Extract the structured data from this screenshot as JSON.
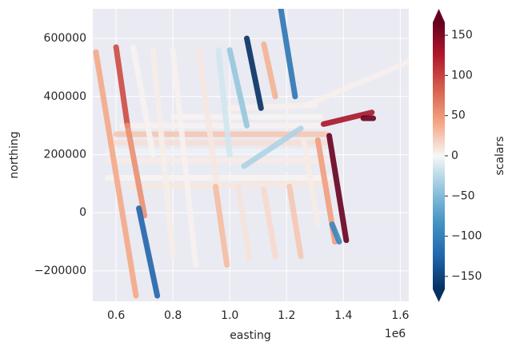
{
  "chart_data": {
    "type": "tracks",
    "xlabel": "easting",
    "ylabel": "northing",
    "x_offset_text": "1e6",
    "xlim": [
      518000,
      1630000
    ],
    "ylim": [
      -305000,
      702000
    ],
    "xticks": [
      {
        "value": 600000,
        "label": "0.6"
      },
      {
        "value": 800000,
        "label": "0.8"
      },
      {
        "value": 1000000,
        "label": "1.0"
      },
      {
        "value": 1200000,
        "label": "1.2"
      },
      {
        "value": 1400000,
        "label": "1.4"
      },
      {
        "value": 1600000,
        "label": "1.6"
      }
    ],
    "yticks": [
      {
        "value": -200000,
        "label": "−200000"
      },
      0,
      200000,
      400000,
      600000
    ],
    "colorbar_label": "scalars",
    "clim": [
      -166,
      166
    ],
    "cticks": [
      {
        "value": -150,
        "label": "−150"
      },
      {
        "value": -100,
        "label": "−100"
      },
      {
        "value": -50,
        "label": "−50"
      },
      0,
      50,
      100,
      150
    ],
    "colormap": "RdBu_r",
    "series": [
      {
        "x": [
          1270000,
          1630000
        ],
        "values": [
          370000,
          520000
        ],
        "scalar": 4
      },
      {
        "x": [
          570000,
          1350000
        ],
        "values": [
          120000,
          120000
        ],
        "scalar": 2
      },
      {
        "x": [
          570000,
          1350000
        ],
        "values": [
          150000,
          150000
        ],
        "scalar": -8
      },
      {
        "x": [
          570000,
          1350000
        ],
        "values": [
          180000,
          180000
        ],
        "scalar": 6
      },
      {
        "x": [
          570000,
          1350000
        ],
        "values": [
          210000,
          210000
        ],
        "scalar": -4
      },
      {
        "x": [
          580000,
          1350000
        ],
        "values": [
          240000,
          240000
        ],
        "scalar": 12
      },
      {
        "x": [
          600000,
          1340000
        ],
        "values": [
          270000,
          270000
        ],
        "scalar": 25
      },
      {
        "x": [
          620000,
          1330000
        ],
        "values": [
          300000,
          300000
        ],
        "scalar": 3
      },
      {
        "x": [
          800000,
          1320000
        ],
        "values": [
          330000,
          330000
        ],
        "scalar": 2
      },
      {
        "x": [
          1000000,
          1300000
        ],
        "values": [
          360000,
          370000
        ],
        "scalar": 4
      },
      {
        "x": [
          1050000,
          1250000
        ],
        "values": [
          160000,
          290000
        ],
        "scalar": -30
      },
      {
        "x": [
          650000,
          1350000
        ],
        "values": [
          90000,
          100000
        ],
        "scalar": 8
      },
      {
        "x": [
          529000,
          670000
        ],
        "values": [
          553000,
          -286000
        ],
        "scalar": 40
      },
      {
        "x": [
          600000,
          640000
        ],
        "values": [
          570000,
          300000
        ],
        "scalar": 95
      },
      {
        "x": [
          640000,
          700000
        ],
        "values": [
          300000,
          -10000
        ],
        "scalar": 55
      },
      {
        "x": [
          680000,
          745000
        ],
        "values": [
          15000,
          -286000
        ],
        "scalar": -125
      },
      {
        "x": [
          660000,
          730000
        ],
        "values": [
          570000,
          200000
        ],
        "scalar": 2
      },
      {
        "x": [
          730000,
          800000
        ],
        "values": [
          560000,
          -150000
        ],
        "scalar": 5
      },
      {
        "x": [
          800000,
          880000
        ],
        "values": [
          560000,
          -180000
        ],
        "scalar": 3
      },
      {
        "x": [
          890000,
          960000
        ],
        "values": [
          560000,
          60000
        ],
        "scalar": 8
      },
      {
        "x": [
          960000,
          1000000
        ],
        "values": [
          560000,
          200000
        ],
        "scalar": -15
      },
      {
        "x": [
          950000,
          990000
        ],
        "values": [
          90000,
          -180000
        ],
        "scalar": 30
      },
      {
        "x": [
          1030000,
          1070000
        ],
        "values": [
          90000,
          -160000
        ],
        "scalar": 10
      },
      {
        "x": [
          1000000,
          1060000
        ],
        "values": [
          560000,
          300000
        ],
        "scalar": -40
      },
      {
        "x": [
          1060000,
          1110000
        ],
        "values": [
          600000,
          360000
        ],
        "scalar": -170
      },
      {
        "x": [
          1120000,
          1160000
        ],
        "values": [
          580000,
          400000
        ],
        "scalar": 35
      },
      {
        "x": [
          1180000,
          1230000
        ],
        "values": [
          700000,
          400000
        ],
        "scalar": -110
      },
      {
        "x": [
          1120000,
          1160000
        ],
        "values": [
          80000,
          -150000
        ],
        "scalar": 15
      },
      {
        "x": [
          1210000,
          1250000
        ],
        "values": [
          90000,
          -150000
        ],
        "scalar": 25
      },
      {
        "x": [
          1260000,
          1310000
        ],
        "values": [
          250000,
          -40000
        ],
        "scalar": 6
      },
      {
        "x": [
          1310000,
          1370000
        ],
        "values": [
          250000,
          -100000
        ],
        "scalar": 45
      },
      {
        "x": [
          1360000,
          1385000
        ],
        "values": [
          -40000,
          -100000
        ],
        "scalar": -95
      },
      {
        "x": [
          1350000,
          1410000
        ],
        "values": [
          265000,
          -95000
        ],
        "scalar": 175
      },
      {
        "x": [
          1330000,
          1500000
        ],
        "values": [
          305000,
          345000
        ],
        "scalar": 130
      },
      {
        "x": [
          1470000,
          1505000
        ],
        "values": [
          325000,
          325000
        ],
        "scalar": 170
      }
    ]
  }
}
